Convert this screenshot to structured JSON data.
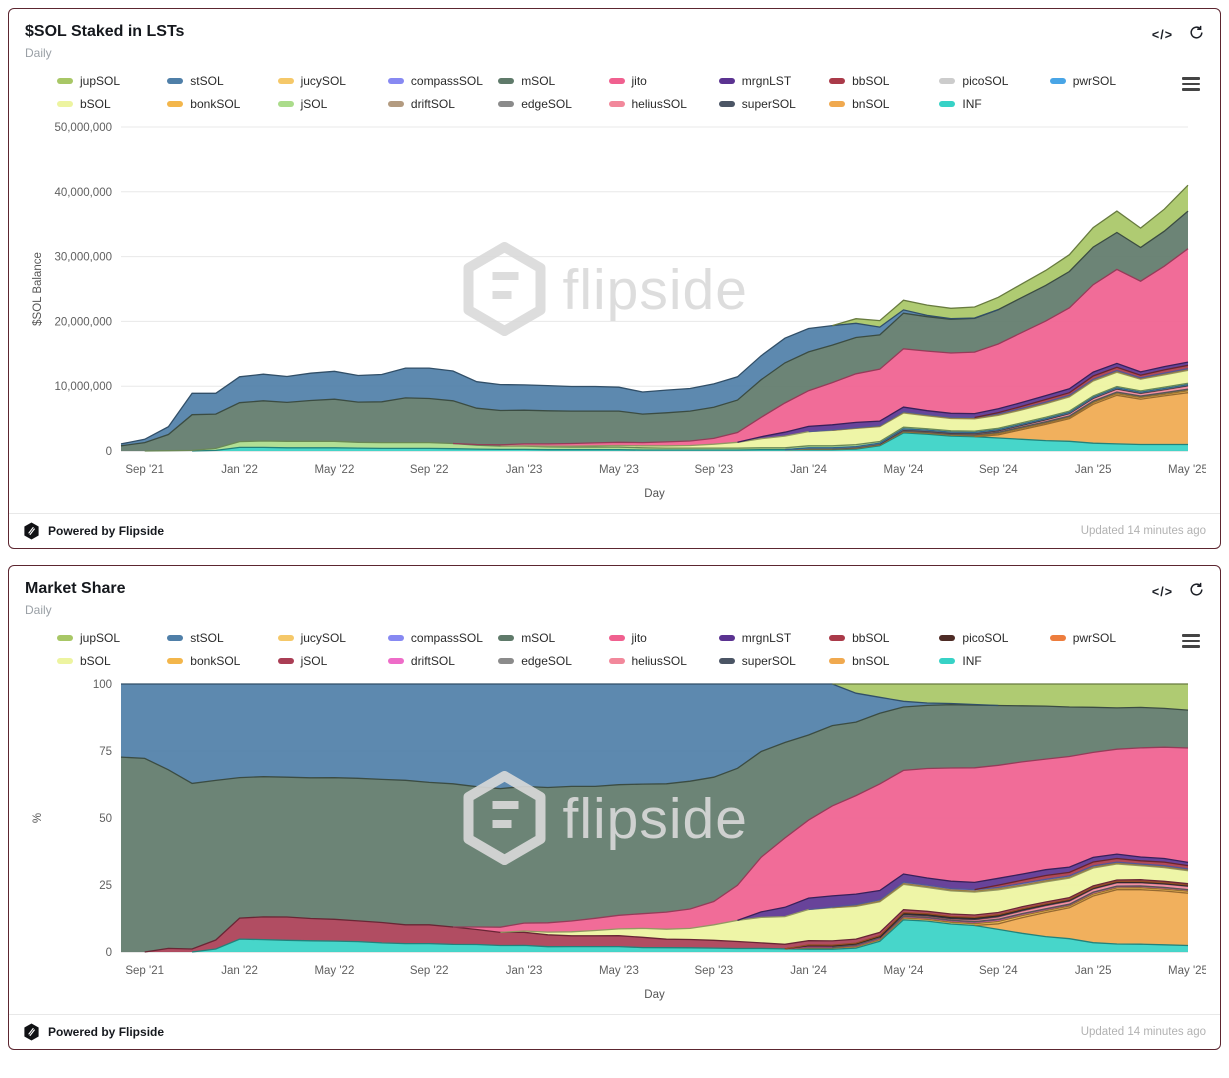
{
  "cards": [
    {
      "title": "$SOL Staked in LSTs",
      "subtitle": "Daily",
      "footer": {
        "powered": "Powered by Flipside",
        "updated": "Updated 14 minutes ago"
      }
    },
    {
      "title": "Market Share",
      "subtitle": "Daily",
      "footer": {
        "powered": "Powered by Flipside",
        "updated": "Updated 14 minutes ago"
      }
    }
  ],
  "icons": {
    "code_glyph": "</>",
    "refresh": "refresh-icon",
    "menu": "chart-context-menu-icon"
  },
  "watermark": {
    "text": "flipside"
  },
  "legend": {
    "tokens": [
      "jupSOL",
      "stSOL",
      "jucySOL",
      "compassSOL",
      "mSOL",
      "jito",
      "mrgnLST",
      "bbSOL",
      "picoSOL",
      "pwrSOL",
      "bSOL",
      "bonkSOL",
      "jSOL",
      "driftSOL",
      "edgeSOL",
      "heliusSOL",
      "superSOL",
      "bnSOL",
      "INF"
    ]
  },
  "palettes": {
    "chart1": {
      "jupSOL": "#a8c766",
      "stSOL": "#4f7fa8",
      "jucySOL": "#f5c869",
      "compassSOL": "#8789f2",
      "mSOL": "#5f7a6a",
      "jito": "#f0608f",
      "mrgnLST": "#5b3391",
      "bbSOL": "#aa3a49",
      "picoSOL": "#cccccc",
      "pwrSOL": "#49a5e6",
      "bSOL": "#edf4a0",
      "bonkSOL": "#f3b64b",
      "jSOL": "#abdc8b",
      "driftSOL": "#b39b80",
      "edgeSOL": "#8b8b8b",
      "heliusSOL": "#f2889b",
      "superSOL": "#4b5565",
      "bnSOL": "#f0a94f",
      "INF": "#37d2c6"
    },
    "chart2": {
      "jupSOL": "#a8c766",
      "stSOL": "#4f7fa8",
      "jucySOL": "#f5c869",
      "compassSOL": "#8789f2",
      "mSOL": "#5f7a6a",
      "jito": "#f0608f",
      "mrgnLST": "#5b3391",
      "bbSOL": "#aa3a49",
      "picoSOL": "#4e2c26",
      "pwrSOL": "#ed7d3d",
      "bSOL": "#edf4a0",
      "bonkSOL": "#f3b64b",
      "jSOL": "#aa3e55",
      "driftSOL": "#ee6cc8",
      "edgeSOL": "#8b8b8b",
      "heliusSOL": "#f2889b",
      "superSOL": "#4b5565",
      "bnSOL": "#f0a94f",
      "INF": "#37d2c6"
    }
  },
  "chart_data": [
    {
      "type": "area",
      "stacked": true,
      "title": "$SOL Staked in LSTs",
      "xlabel": "Day",
      "ylabel": "$SOL Balance",
      "x_start": "Aug 2021",
      "x_end": "May 2025",
      "x_step": "month",
      "n_points": 46,
      "tick_positions": [
        1,
        5,
        9,
        13,
        17,
        21,
        25,
        29,
        33,
        37,
        41,
        45
      ],
      "x_tick_labels": [
        "Sep '21",
        "Jan '22",
        "May '22",
        "Sep '22",
        "Jan '23",
        "May '23",
        "Sep '23",
        "Jan '24",
        "May '24",
        "Sep '24",
        "Jan '25",
        "May '25"
      ],
      "ymax": 50,
      "ytick_values": [
        0,
        10,
        20,
        30,
        40,
        50
      ],
      "ytick_labels": [
        "0",
        "10,000,000",
        "20,000,000",
        "30,000,000",
        "40,000,000",
        "50,000,000"
      ],
      "value_unit": "millions of SOL",
      "unit_multiplier": 1000000,
      "legend_position": "top",
      "grid": true,
      "stack_order": [
        "INF",
        "bnSOL",
        "bonkSOL",
        "driftSOL",
        "edgeSOL",
        "heliusSOL",
        "superSOL",
        "picoSOL",
        "pwrSOL",
        "jSOL",
        "bSOL",
        "jucySOL",
        "compassSOL",
        "bbSOL",
        "mrgnLST",
        "jito",
        "mSOL",
        "stSOL",
        "jupSOL"
      ],
      "series": {
        "INF": [
          0,
          0,
          0,
          0,
          0.1,
          0.55,
          0.55,
          0.5,
          0.5,
          0.5,
          0.45,
          0.4,
          0.4,
          0.4,
          0.35,
          0.3,
          0.25,
          0.25,
          0.2,
          0.2,
          0.2,
          0.2,
          0.15,
          0.15,
          0.15,
          0.15,
          0.15,
          0.2,
          0.2,
          0.2,
          0.2,
          0.3,
          0.8,
          2.8,
          2.6,
          2.3,
          2.2,
          2.0,
          1.8,
          1.6,
          1.5,
          1.2,
          1.1,
          1.0,
          1.0,
          1.0
        ],
        "bnSOL": [
          0,
          0,
          0,
          0,
          0,
          0,
          0,
          0,
          0,
          0,
          0,
          0,
          0,
          0,
          0,
          0,
          0,
          0,
          0,
          0,
          0,
          0,
          0,
          0,
          0,
          0,
          0,
          0,
          0,
          0,
          0,
          0,
          0,
          0,
          0,
          0,
          0,
          0.5,
          1.5,
          2.5,
          3.5,
          6.0,
          7.5,
          7.0,
          7.5,
          8.0
        ],
        "bonkSOL": [
          0,
          0,
          0,
          0,
          0,
          0,
          0,
          0,
          0,
          0,
          0,
          0,
          0,
          0,
          0,
          0,
          0,
          0,
          0,
          0,
          0,
          0,
          0,
          0,
          0,
          0,
          0,
          0,
          0,
          0.1,
          0.1,
          0.1,
          0.12,
          0.15,
          0.15,
          0.15,
          0.15,
          0.2,
          0.2,
          0.2,
          0.2,
          0.25,
          0.25,
          0.25,
          0.25,
          0.3
        ],
        "driftSOL": [
          0,
          0,
          0,
          0,
          0,
          0,
          0,
          0,
          0,
          0,
          0,
          0,
          0,
          0,
          0,
          0,
          0,
          0,
          0,
          0,
          0,
          0,
          0,
          0,
          0,
          0,
          0,
          0,
          0,
          0.05,
          0.05,
          0.08,
          0.1,
          0.12,
          0.12,
          0.12,
          0.12,
          0.15,
          0.15,
          0.15,
          0.15,
          0.2,
          0.2,
          0.18,
          0.2,
          0.2
        ],
        "edgeSOL": [
          0,
          0,
          0,
          0,
          0,
          0,
          0,
          0,
          0,
          0,
          0,
          0,
          0,
          0,
          0,
          0,
          0,
          0,
          0,
          0,
          0,
          0,
          0,
          0,
          0,
          0,
          0,
          0,
          0,
          0,
          0,
          0.05,
          0.05,
          0.05,
          0.05,
          0.05,
          0.05,
          0.05,
          0.05,
          0.05,
          0.05,
          0.05,
          0.05,
          0.05,
          0.05,
          0.05
        ],
        "heliusSOL": [
          0,
          0,
          0,
          0,
          0,
          0,
          0,
          0,
          0,
          0,
          0,
          0,
          0,
          0,
          0,
          0,
          0,
          0,
          0,
          0,
          0,
          0,
          0,
          0,
          0,
          0,
          0,
          0,
          0,
          0,
          0,
          0,
          0,
          0.1,
          0.1,
          0.1,
          0.15,
          0.2,
          0.25,
          0.3,
          0.35,
          0.4,
          0.45,
          0.4,
          0.45,
          0.5
        ],
        "superSOL": [
          0,
          0,
          0,
          0,
          0,
          0,
          0,
          0,
          0,
          0,
          0,
          0,
          0,
          0,
          0,
          0,
          0,
          0,
          0,
          0,
          0,
          0,
          0,
          0,
          0,
          0,
          0,
          0,
          0,
          0,
          0,
          0,
          0,
          0.05,
          0.05,
          0.05,
          0.05,
          0.05,
          0.05,
          0.05,
          0.05,
          0.05,
          0.05,
          0.05,
          0.05,
          0.05
        ],
        "picoSOL": [
          0,
          0,
          0,
          0,
          0,
          0,
          0,
          0,
          0,
          0,
          0,
          0,
          0,
          0,
          0,
          0,
          0,
          0,
          0,
          0,
          0,
          0,
          0,
          0,
          0,
          0,
          0,
          0,
          0,
          0.1,
          0.1,
          0.1,
          0.1,
          0.1,
          0.1,
          0.1,
          0.1,
          0.1,
          0.1,
          0.1,
          0.1,
          0.1,
          0.1,
          0.1,
          0.1,
          0.1
        ],
        "pwrSOL": [
          0,
          0,
          0,
          0,
          0,
          0,
          0,
          0,
          0,
          0,
          0,
          0,
          0,
          0,
          0,
          0,
          0,
          0,
          0,
          0,
          0,
          0,
          0,
          0,
          0,
          0,
          0,
          0,
          0,
          0.05,
          0.05,
          0.05,
          0.05,
          0.05,
          0.05,
          0.05,
          0.05,
          0.05,
          0.05,
          0.05,
          0.05,
          0.05,
          0.05,
          0.05,
          0.05,
          0.05
        ],
        "jSOL": [
          0,
          0,
          0.05,
          0.1,
          0.3,
          0.9,
          1.0,
          1.0,
          1.0,
          1.0,
          0.9,
          0.9,
          0.9,
          0.9,
          0.8,
          0.6,
          0.5,
          0.5,
          0.45,
          0.4,
          0.4,
          0.4,
          0.35,
          0.3,
          0.3,
          0.3,
          0.3,
          0.3,
          0.3,
          0.3,
          0.3,
          0.3,
          0.25,
          0.25,
          0.2,
          0.2,
          0.2,
          0.2,
          0.2,
          0.2,
          0.2,
          0.2,
          0.2,
          0.2,
          0.2,
          0.2
        ],
        "bSOL": [
          0,
          0,
          0,
          0,
          0,
          0,
          0,
          0,
          0,
          0,
          0,
          0,
          0,
          0,
          0,
          0,
          0,
          0.05,
          0.1,
          0.15,
          0.2,
          0.25,
          0.3,
          0.35,
          0.4,
          0.6,
          0.9,
          1.4,
          1.8,
          2.2,
          2.4,
          2.5,
          2.3,
          2.2,
          2.0,
          1.9,
          1.9,
          2.0,
          2.0,
          2.1,
          2.2,
          2.3,
          2.2,
          1.8,
          1.9,
          2.0
        ],
        "jucySOL": [
          0,
          0,
          0,
          0,
          0,
          0,
          0,
          0,
          0,
          0,
          0,
          0,
          0,
          0,
          0,
          0,
          0,
          0,
          0,
          0,
          0,
          0,
          0,
          0,
          0,
          0,
          0,
          0,
          0,
          0,
          0,
          0.05,
          0.05,
          0.08,
          0.08,
          0.08,
          0.08,
          0.1,
          0.1,
          0.1,
          0.1,
          0.12,
          0.12,
          0.1,
          0.12,
          0.12
        ],
        "compassSOL": [
          0,
          0,
          0,
          0,
          0,
          0,
          0,
          0,
          0,
          0,
          0,
          0,
          0,
          0,
          0,
          0,
          0,
          0,
          0,
          0,
          0,
          0,
          0,
          0,
          0,
          0,
          0,
          0,
          0,
          0,
          0.05,
          0.08,
          0.1,
          0.12,
          0.12,
          0.12,
          0.12,
          0.12,
          0.15,
          0.15,
          0.15,
          0.15,
          0.15,
          0.12,
          0.15,
          0.15
        ],
        "bbSOL": [
          0,
          0,
          0,
          0,
          0,
          0,
          0,
          0,
          0,
          0,
          0,
          0,
          0,
          0,
          0,
          0,
          0,
          0,
          0,
          0,
          0,
          0,
          0,
          0,
          0,
          0,
          0,
          0,
          0,
          0,
          0,
          0,
          0,
          0,
          0,
          0,
          0,
          0.2,
          0.3,
          0.4,
          0.4,
          0.5,
          0.5,
          0.4,
          0.5,
          0.5
        ],
        "mrgnLST": [
          0,
          0,
          0,
          0,
          0,
          0,
          0,
          0,
          0,
          0,
          0,
          0,
          0,
          0,
          0,
          0,
          0,
          0,
          0,
          0,
          0,
          0,
          0,
          0,
          0,
          0,
          0,
          0.3,
          0.6,
          0.8,
          0.8,
          0.8,
          0.7,
          0.7,
          0.6,
          0.6,
          0.6,
          0.6,
          0.6,
          0.6,
          0.6,
          0.6,
          0.6,
          0.5,
          0.5,
          0.5
        ],
        "jito": [
          0,
          0,
          0,
          0,
          0,
          0,
          0,
          0,
          0,
          0,
          0,
          0,
          0,
          0,
          0,
          0.1,
          0.2,
          0.3,
          0.35,
          0.4,
          0.45,
          0.5,
          0.5,
          0.6,
          0.7,
          0.9,
          1.5,
          3.0,
          4.5,
          5.5,
          6.5,
          7.5,
          8.0,
          9.0,
          9.2,
          9.3,
          9.5,
          10.0,
          10.8,
          11.5,
          12.5,
          13.5,
          14.5,
          14.0,
          15.5,
          17.5
        ],
        "mSOL": [
          0.8,
          1.3,
          2.5,
          5.5,
          5.3,
          6.0,
          6.2,
          6.0,
          6.3,
          6.5,
          6.2,
          6.3,
          6.9,
          6.8,
          6.6,
          5.6,
          5.3,
          5.2,
          5.1,
          5.0,
          4.9,
          4.8,
          4.4,
          4.5,
          4.6,
          4.8,
          5.0,
          5.8,
          6.2,
          6.0,
          5.8,
          5.6,
          5.3,
          5.5,
          5.3,
          5.2,
          5.2,
          5.3,
          5.4,
          5.5,
          5.6,
          5.8,
          5.7,
          5.2,
          5.4,
          5.8
        ],
        "stSOL": [
          0.3,
          0.5,
          1.2,
          3.3,
          3.2,
          4.0,
          4.1,
          4.0,
          4.2,
          4.3,
          4.1,
          4.2,
          4.6,
          4.7,
          4.6,
          4.1,
          4.0,
          3.9,
          3.9,
          3.8,
          3.8,
          3.7,
          3.4,
          3.5,
          3.5,
          3.6,
          3.6,
          3.7,
          3.8,
          3.6,
          3.0,
          2.2,
          1.2,
          0.5,
          0.2,
          0.1,
          0.05,
          0,
          0,
          0,
          0,
          0,
          0,
          0,
          0,
          0
        ],
        "jupSOL": [
          0,
          0,
          0,
          0,
          0,
          0,
          0,
          0,
          0,
          0,
          0,
          0,
          0,
          0,
          0,
          0,
          0,
          0,
          0,
          0,
          0,
          0,
          0,
          0,
          0,
          0,
          0,
          0,
          0,
          0,
          0,
          0.7,
          1.0,
          1.5,
          1.6,
          1.6,
          1.7,
          1.9,
          2.1,
          2.3,
          2.6,
          3.0,
          3.3,
          3.0,
          3.4,
          4.0
        ]
      }
    },
    {
      "type": "area",
      "stacked": true,
      "normalize": "percent",
      "title": "Market Share",
      "xlabel": "Day",
      "ylabel": "%",
      "x_start": "Aug 2021",
      "x_end": "May 2025",
      "x_step": "month",
      "n_points": 46,
      "tick_positions": [
        1,
        5,
        9,
        13,
        17,
        21,
        25,
        29,
        33,
        37,
        41,
        45
      ],
      "x_tick_labels": [
        "Sep '21",
        "Jan '22",
        "May '22",
        "Sep '22",
        "Jan '23",
        "May '23",
        "Sep '23",
        "Jan '24",
        "May '24",
        "Sep '24",
        "Jan '25",
        "May '25"
      ],
      "ymax": 100,
      "ytick_values": [
        0,
        25,
        50,
        75,
        100
      ],
      "ytick_labels": [
        "0",
        "25",
        "50",
        "75",
        "100"
      ],
      "legend_position": "top",
      "grid": true,
      "series_ref": 0,
      "derived_from": "series of chart 0 normalized to percent of daily total"
    }
  ]
}
